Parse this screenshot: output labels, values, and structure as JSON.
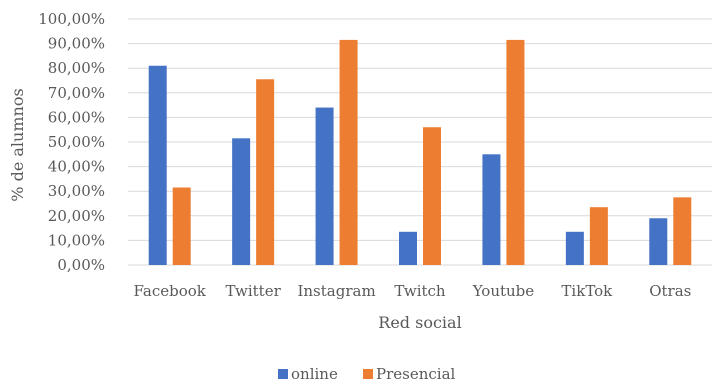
{
  "chart_data": {
    "type": "bar",
    "title": "",
    "xlabel": "Red social",
    "ylabel": "% de alumnos",
    "categories": [
      "Facebook",
      "Twitter",
      "Instagram",
      "Twitch",
      "Youtube",
      "TikTok",
      "Otras"
    ],
    "series": [
      {
        "name": "online",
        "color": "#4472C4",
        "values": [
          81,
          51.5,
          64,
          13.5,
          45,
          13.5,
          19
        ]
      },
      {
        "name": "Presencial",
        "color": "#ED7D31",
        "values": [
          31.5,
          75.5,
          91.5,
          56,
          91.5,
          23.5,
          27.5
        ]
      }
    ],
    "ylim": [
      0,
      100
    ],
    "yticks": [
      "0,00%",
      "10,00%",
      "20,00%",
      "30,00%",
      "40,00%",
      "50,00%",
      "60,00%",
      "70,00%",
      "80,00%",
      "90,00%",
      "100,00%"
    ],
    "grid": true,
    "legend": "bottom"
  }
}
